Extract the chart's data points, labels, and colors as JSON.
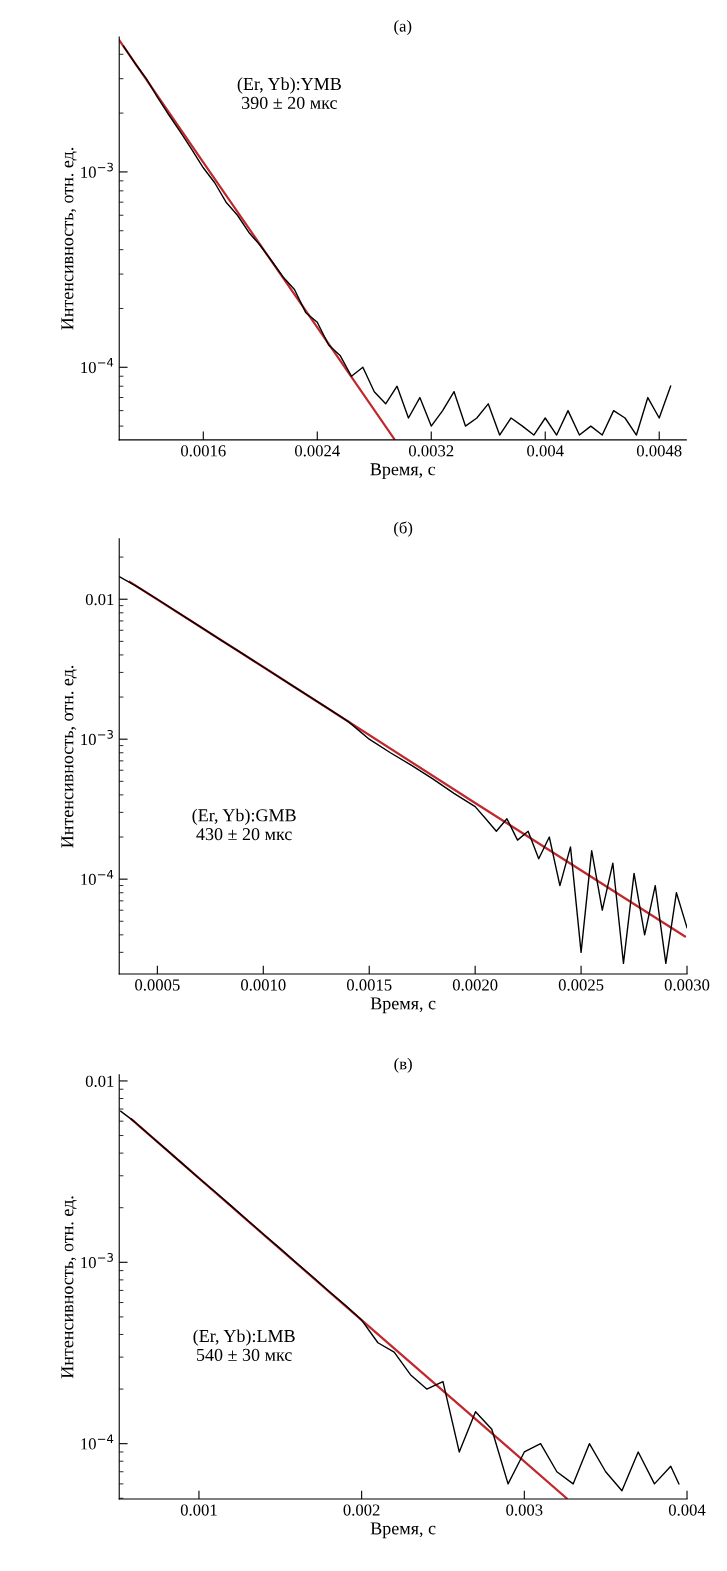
{
  "chart_data": [
    {
      "type": "line",
      "title": "(a)",
      "xlabel": "Время, с",
      "ylabel": "Интенсивность, отн. ед.",
      "log": "y",
      "xlim": [
        0.00101,
        0.00499
      ],
      "ylim": [
        4.25e-05,
        0.0049
      ],
      "xticks": [
        0.0016,
        0.0024,
        0.0032,
        0.004,
        0.0048
      ],
      "yticks": [
        {
          "value": 0.001,
          "label": "10$^{−3}$"
        },
        {
          "value": 0.0001,
          "label": "10$^{−4}$"
        }
      ],
      "grid": false,
      "legend": false,
      "annotations": [
        "(Er, Yb):YMB\n390 ± 20 мкс"
      ],
      "series": [
        {
          "color": "#000000",
          "x": [
            0.00104,
            0.00112,
            0.0012,
            0.00128,
            0.00136,
            0.00144,
            0.00152,
            0.0016,
            0.00168,
            0.00176,
            0.00184,
            0.00192,
            0.002,
            0.00208,
            0.00216,
            0.00224,
            0.00232,
            0.0024,
            0.00248,
            0.00256,
            0.00264,
            0.00272,
            0.0028,
            0.00288,
            0.00296,
            0.00304,
            0.00312,
            0.0032,
            0.00328,
            0.00336,
            0.00344,
            0.00352,
            0.0036,
            0.00368,
            0.00376,
            0.00384,
            0.00392,
            0.004,
            0.00408,
            0.00416,
            0.00424,
            0.00432,
            0.0044,
            0.00448,
            0.00456,
            0.00464,
            0.00472,
            0.0048,
            0.00488
          ],
          "values": [
            0.0044,
            0.0036,
            0.003,
            0.0024,
            0.00195,
            0.0016,
            0.0013,
            0.00105,
            0.00088,
            0.0007,
            0.0006,
            0.00049,
            0.00042,
            0.00035,
            0.00029,
            0.00025,
            0.00019,
            0.00017,
            0.00013,
            0.000115,
            9e-05,
            0.0001,
            7.5e-05,
            6.5e-05,
            8e-05,
            5.5e-05,
            7e-05,
            5e-05,
            6e-05,
            7.5e-05,
            5e-05,
            5.5e-05,
            6.5e-05,
            4.5e-05,
            5.5e-05,
            5e-05,
            4.5e-05,
            5.5e-05,
            4.5e-05,
            6e-05,
            4.5e-05,
            5e-05,
            4.5e-05,
            6e-05,
            5.5e-05,
            4.5e-05,
            7e-05,
            5.5e-05,
            8e-05
          ]
        },
        {
          "color": "#c0282d",
          "x": [
            0.00101,
            0.0016,
            0.0024,
            0.00294
          ],
          "values": [
            0.00473,
            0.00112,
            0.00016,
            4.3e-05
          ]
        }
      ]
    },
    {
      "type": "line",
      "title": "(б)",
      "xlabel": "Время, с",
      "ylabel": "Интенсивность, отн. ед.",
      "log": "y",
      "xlim": [
        0.00032,
        0.003
      ],
      "ylim": [
        2.1e-05,
        0.027
      ],
      "xticks": [
        {
          "value": 0.0005,
          "label": "0.0005"
        },
        {
          "value": 0.001,
          "label": "0.0010"
        },
        {
          "value": 0.0015,
          "label": "0.0015"
        },
        {
          "value": 0.002,
          "label": "0.0020"
        },
        {
          "value": 0.0025,
          "label": "0.0025"
        },
        {
          "value": 0.003,
          "label": "0.0030"
        }
      ],
      "yticks": [
        {
          "value": 0.01,
          "label": "0.01"
        },
        {
          "value": 0.001,
          "label": "10$^{−3}$"
        },
        {
          "value": 0.0001,
          "label": "10$^{−4}$"
        }
      ],
      "grid": false,
      "legend": false,
      "annotations": [
        "(Er, Yb):GMB\n430 ± 20 мкс"
      ],
      "series": [
        {
          "color": "#000000",
          "x": [
            0.00032,
            0.0004,
            0.0005,
            0.0006,
            0.0007,
            0.0008,
            0.0009,
            0.001,
            0.0011,
            0.0012,
            0.0013,
            0.0014,
            0.0015,
            0.0016,
            0.0017,
            0.0018,
            0.0019,
            0.002,
            0.00205,
            0.0021,
            0.00215,
            0.0022,
            0.00225,
            0.0023,
            0.00235,
            0.0024,
            0.00245,
            0.0025,
            0.00255,
            0.0026,
            0.00265,
            0.0027,
            0.00275,
            0.0028,
            0.00285,
            0.0029,
            0.00295,
            0.003
          ],
          "values": [
            0.0145,
            0.0124,
            0.01,
            0.008,
            0.0064,
            0.0051,
            0.0041,
            0.00328,
            0.00262,
            0.0021,
            0.00168,
            0.00134,
            0.001,
            0.0008,
            0.00065,
            0.00052,
            0.00041,
            0.00033,
            0.00027,
            0.00022,
            0.00027,
            0.00019,
            0.00022,
            0.00014,
            0.0002,
            9e-05,
            0.00017,
            3e-05,
            0.00016,
            6e-05,
            0.00013,
            2.5e-05,
            0.00011,
            4e-05,
            9e-05,
            2.5e-05,
            8e-05,
            4.5e-05
          ]
        },
        {
          "color": "#c0282d",
          "x": [
            0.00037,
            0.001,
            0.002,
            0.00299
          ],
          "values": [
            0.0133,
            0.00328,
            0.00035,
            3.9e-05
          ]
        }
      ]
    },
    {
      "type": "line",
      "title": "(в)",
      "xlabel": "Время, с",
      "ylabel": "Интенсивность, отн. ед.",
      "log": "y",
      "xlim": [
        0.00051,
        0.004
      ],
      "ylim": [
        4.95e-05,
        0.0108
      ],
      "xticks": [
        0.001,
        0.002,
        0.003,
        0.004
      ],
      "yticks": [
        {
          "value": 0.01,
          "label": "0.01"
        },
        {
          "value": 0.001,
          "label": "10$^{−3}$"
        },
        {
          "value": 0.0001,
          "label": "10$^{−4}$"
        }
      ],
      "grid": false,
      "legend": false,
      "annotations": [
        "(Er, Yb):LMB\n540 ± 30 мкс"
      ],
      "series": [
        {
          "color": "#000000",
          "x": [
            0.00052,
            0.0006,
            0.0007,
            0.0008,
            0.0009,
            0.001,
            0.0011,
            0.0012,
            0.0013,
            0.0014,
            0.0015,
            0.0016,
            0.0017,
            0.0018,
            0.0019,
            0.002,
            0.0021,
            0.0022,
            0.0023,
            0.0024,
            0.0025,
            0.0026,
            0.0027,
            0.0028,
            0.0029,
            0.003,
            0.0031,
            0.0032,
            0.0033,
            0.0034,
            0.0035,
            0.0036,
            0.0037,
            0.0038,
            0.0039,
            0.00395
          ],
          "values": [
            0.0068,
            0.006,
            0.005,
            0.00418,
            0.00349,
            0.00291,
            0.00244,
            0.00204,
            0.0017,
            0.00142,
            0.00119,
            0.00099,
            0.00083,
            0.00069,
            0.00058,
            0.00048,
            0.00036,
            0.00032,
            0.00024,
            0.0002,
            0.00022,
            9e-05,
            0.00015,
            0.00012,
            6e-05,
            9e-05,
            0.0001,
            7e-05,
            6e-05,
            0.0001,
            7e-05,
            5.5e-05,
            9e-05,
            6e-05,
            7.5e-05,
            6e-05
          ]
        },
        {
          "color": "#c0282d",
          "x": [
            0.000586,
            0.001,
            0.002,
            0.00326
          ],
          "values": [
            0.00614,
            0.00291,
            0.00048,
            5e-05
          ]
        }
      ]
    }
  ]
}
